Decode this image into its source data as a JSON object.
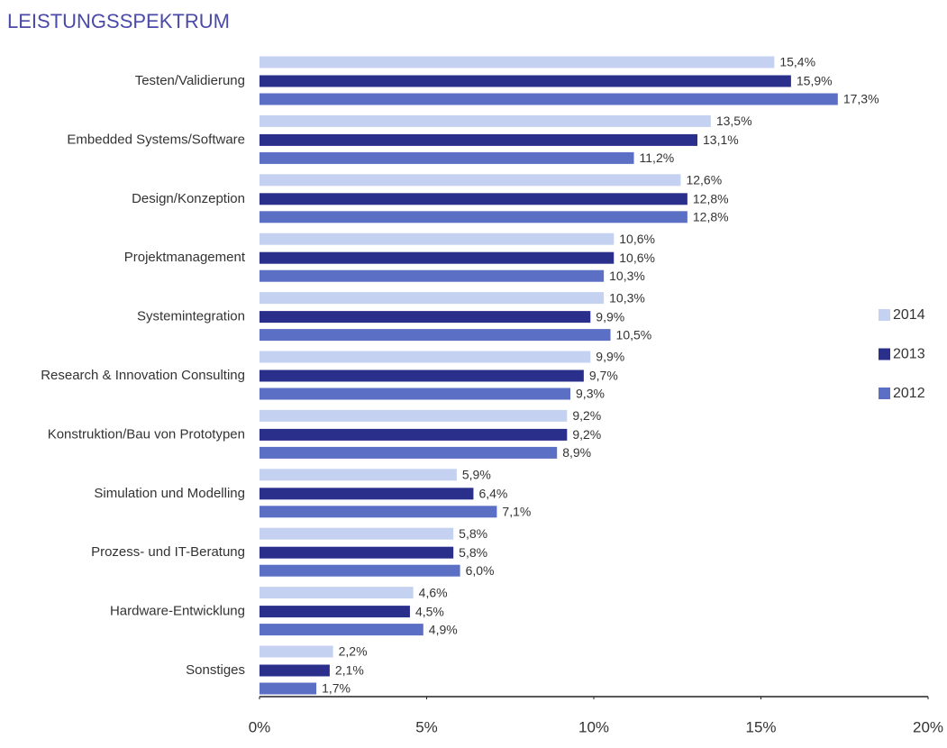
{
  "chart_data": {
    "type": "hbar",
    "title": "LEISTUNGSSPEKTRUM",
    "categories": [
      "Testen/Validierung",
      "Embedded Systems/Software",
      "Design/Konzeption",
      "Projektmanagement",
      "Systemintegration",
      "Research & Innovation Consulting",
      "Konstruktion/Bau von Prototypen",
      "Simulation und Modelling",
      "Prozess- und IT-Beratung",
      "Hardware-Entwicklung",
      "Sonstiges"
    ],
    "series": [
      {
        "name": "2014",
        "color": "#c5d1f0",
        "values": [
          15.4,
          13.5,
          12.6,
          10.6,
          10.3,
          9.9,
          9.2,
          5.9,
          5.8,
          4.6,
          2.2
        ],
        "value_labels": [
          "15,4%",
          "13,5%",
          "12,6%",
          "10,6%",
          "10,3%",
          "9,9%",
          "9,2%",
          "5,9%",
          "5,8%",
          "4,6%",
          "2,2%"
        ]
      },
      {
        "name": "2013",
        "color": "#2b2f8c",
        "values": [
          15.9,
          13.1,
          12.8,
          10.6,
          9.9,
          9.7,
          9.2,
          6.4,
          5.8,
          4.5,
          2.1
        ],
        "value_labels": [
          "15,9%",
          "13,1%",
          "12,8%",
          "10,6%",
          "9,9%",
          "9,7%",
          "9,2%",
          "6,4%",
          "5,8%",
          "4,5%",
          "2,1%"
        ]
      },
      {
        "name": "2012",
        "color": "#5b6fc4",
        "values": [
          17.3,
          11.2,
          12.8,
          10.3,
          10.5,
          9.3,
          8.9,
          7.1,
          6.0,
          4.9,
          1.7
        ],
        "value_labels": [
          "17,3%",
          "11,2%",
          "12,8%",
          "10,3%",
          "10,5%",
          "9,3%",
          "8,9%",
          "7,1%",
          "6,0%",
          "4,9%",
          "1,7%"
        ]
      }
    ],
    "xlim": [
      0,
      20
    ],
    "xticks": [
      {
        "value": 0,
        "label": "0%"
      },
      {
        "value": 5,
        "label": "5%"
      },
      {
        "value": 10,
        "label": "10%"
      },
      {
        "value": 15,
        "label": "15%"
      },
      {
        "value": 20,
        "label": "20%"
      }
    ],
    "legend": "right"
  }
}
